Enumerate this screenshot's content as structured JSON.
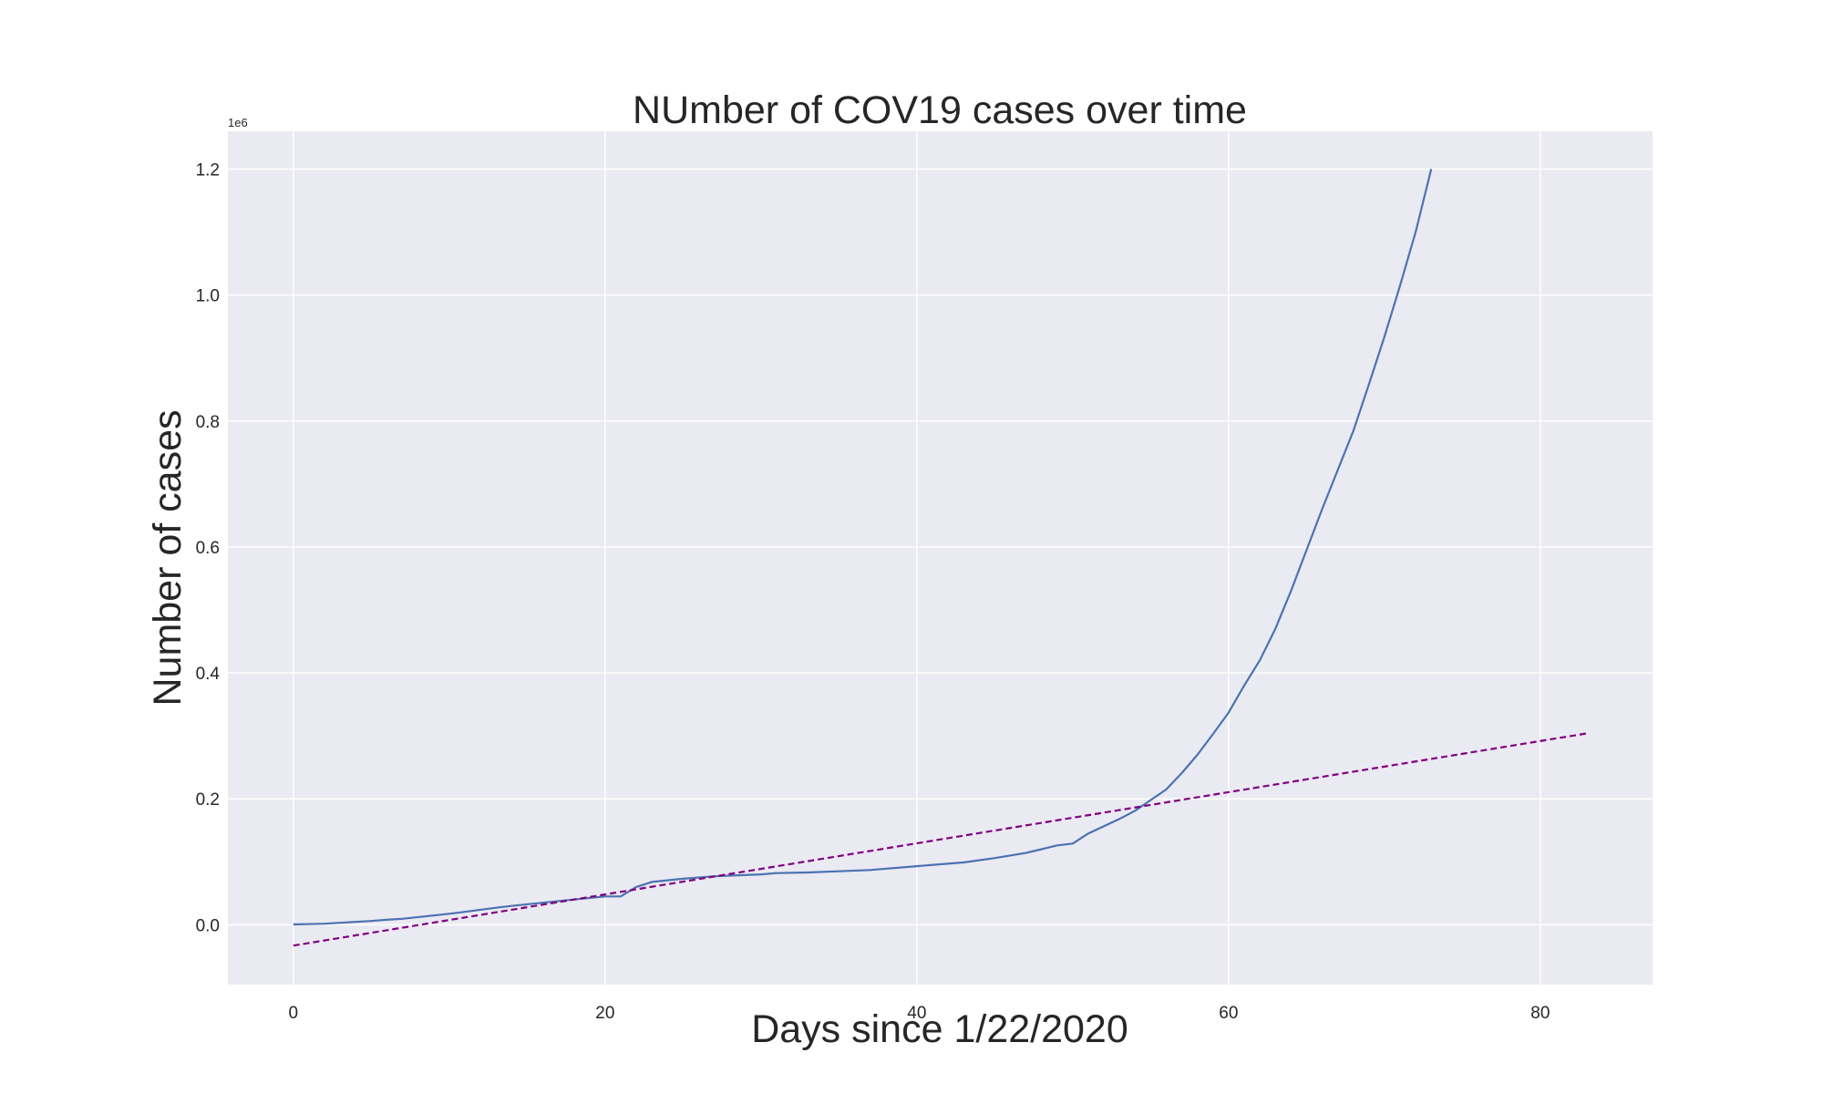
{
  "chart_data": {
    "type": "line",
    "title": "NUmber of COV19 cases over time",
    "xlabel": "Days since 1/22/2020",
    "ylabel": "Number of cases",
    "y_offset_label": "1e6",
    "xlim": [
      -4.2,
      87.2
    ],
    "ylim": [
      -0.095,
      1.26
    ],
    "x_ticks": [
      0,
      20,
      40,
      60,
      80
    ],
    "x_tick_labels": [
      "0",
      "20",
      "40",
      "60",
      "80"
    ],
    "y_ticks": [
      0.0,
      0.2,
      0.4,
      0.6,
      0.8,
      1.0,
      1.2
    ],
    "y_tick_labels": [
      "0.0",
      "0.2",
      "0.4",
      "0.6",
      "0.8",
      "1.0",
      "1.2"
    ],
    "y_scale_note": "values in millions (1e6)",
    "grid": true,
    "background": "#eaeaf2",
    "series": [
      {
        "style": "solid",
        "color": "#4c72b0",
        "x": [
          0,
          2,
          5,
          6,
          7,
          10,
          11,
          13,
          14,
          16,
          18,
          20,
          21,
          22,
          23,
          25,
          27,
          30,
          31,
          33,
          35,
          37,
          40,
          43,
          45,
          47,
          48,
          49,
          50,
          51,
          53,
          54,
          55,
          56,
          57,
          58,
          59,
          60,
          61,
          62,
          63,
          64,
          65,
          66,
          67,
          68,
          69,
          70,
          71,
          72,
          73
        ],
        "y": [
          0.0006,
          0.0017,
          0.006,
          0.008,
          0.0095,
          0.0175,
          0.0205,
          0.027,
          0.03,
          0.035,
          0.04,
          0.045,
          0.045,
          0.06,
          0.068,
          0.073,
          0.077,
          0.08,
          0.082,
          0.083,
          0.085,
          0.087,
          0.093,
          0.099,
          0.106,
          0.114,
          0.12,
          0.126,
          0.129,
          0.145,
          0.168,
          0.181,
          0.198,
          0.215,
          0.241,
          0.27,
          0.303,
          0.337,
          0.38,
          0.42,
          0.47,
          0.53,
          0.595,
          0.66,
          0.722,
          0.784,
          0.858,
          0.934,
          1.015,
          1.1,
          1.2
        ]
      },
      {
        "style": "dashed",
        "color": "#800080",
        "x": [
          0,
          83
        ],
        "y": [
          -0.033,
          0.304
        ]
      }
    ]
  }
}
